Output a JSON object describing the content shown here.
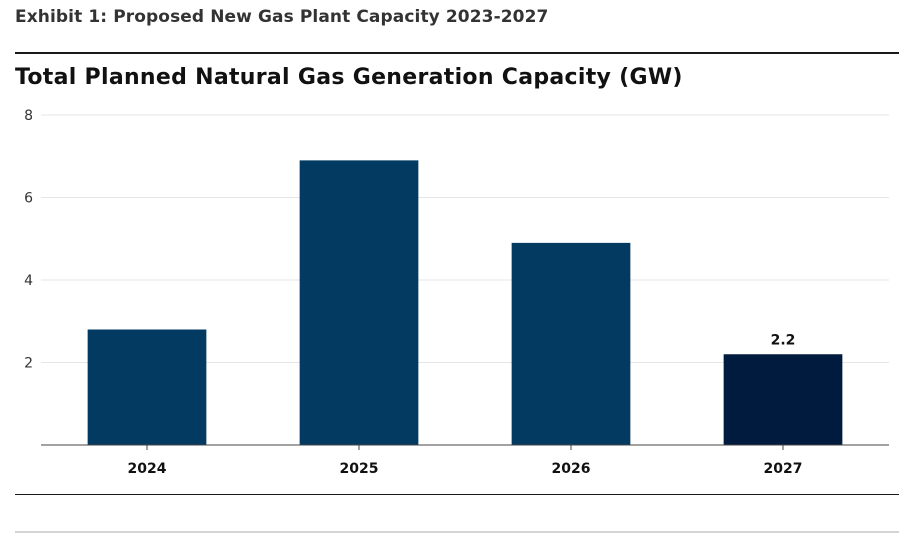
{
  "header": {
    "exhibit_title": "Exhibit 1: Proposed New Gas Plant Capacity 2023-2027"
  },
  "chart_data": {
    "type": "bar",
    "title": "Total Planned Natural Gas Generation Capacity (GW)",
    "xlabel": "",
    "ylabel": "",
    "categories": [
      "2024",
      "2025",
      "2026",
      "2027"
    ],
    "values": [
      2.8,
      6.9,
      4.9,
      2.2
    ],
    "ylim": [
      0,
      8
    ],
    "yticks": [
      2,
      4,
      6,
      8
    ],
    "grid": true,
    "legend": "none",
    "bar_colors": [
      "#023a62",
      "#023a62",
      "#023a62",
      "#011b3f"
    ],
    "data_labels": [
      null,
      null,
      null,
      "2.2"
    ]
  }
}
